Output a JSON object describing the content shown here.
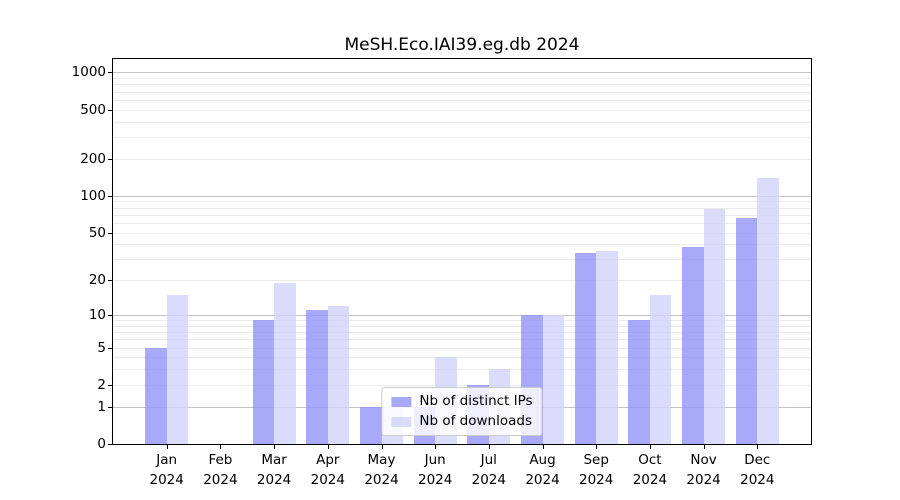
{
  "chart_data": {
    "type": "bar",
    "title": "MeSH.Eco.IAI39.eg.db 2024",
    "categories": [
      "Jan",
      "Feb",
      "Mar",
      "Apr",
      "May",
      "Jun",
      "Jul",
      "Aug",
      "Sep",
      "Oct",
      "Nov",
      "Dec"
    ],
    "tick_year": "2024",
    "series": [
      {
        "name": "Nb of distinct IPs",
        "color": "#9393f9",
        "values": [
          5,
          0,
          9,
          11,
          1,
          1,
          2,
          10,
          34,
          9,
          38,
          66
        ]
      },
      {
        "name": "Nb of downloads",
        "color": "#d2d2fa",
        "values": [
          15,
          0,
          19,
          12,
          1,
          4,
          3,
          10,
          35,
          15,
          78,
          140
        ]
      }
    ],
    "y_ticks": [
      0,
      1,
      2,
      5,
      10,
      20,
      50,
      100,
      200,
      500,
      1000
    ],
    "scale": "log1p",
    "ylim": [
      0,
      1283
    ],
    "xlabel": "",
    "ylabel": "",
    "grid": true,
    "legend_position": "lower center",
    "colors": {
      "major_grid": "#c3c3c3",
      "minor_grid": "#ebebeb",
      "axis": "#000000",
      "background": "#ffffff"
    }
  }
}
